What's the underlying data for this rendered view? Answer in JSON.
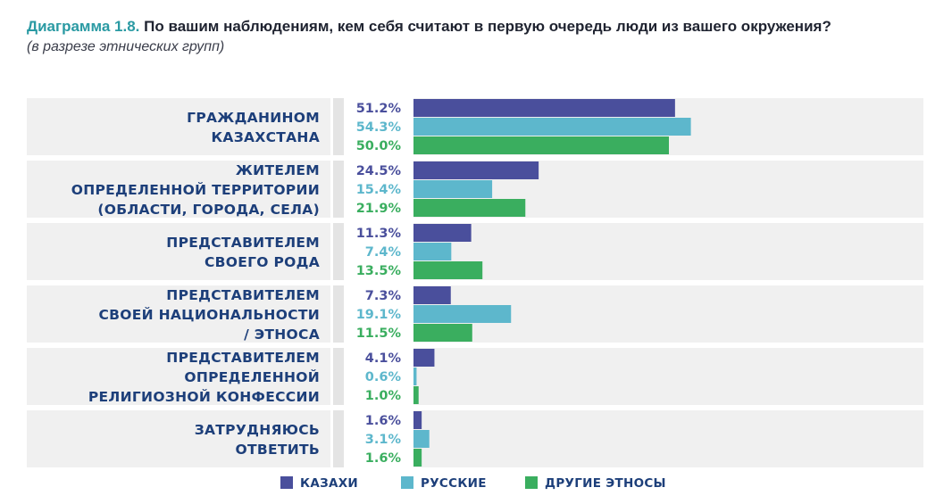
{
  "title_prefix": "Диаграмма 1.8.",
  "title_text": "По вашим наблюдениям, кем себя считают в первую очередь люди из вашего окружения?",
  "subtitle": "(в разрезе этнических групп)",
  "colors": {
    "kazakhs": "#4a4f9c",
    "russians": "#5db7cc",
    "others": "#3aae5f",
    "row_bg": "#f0f0f0",
    "label_text": "#1d3f7a"
  },
  "chart_data": {
    "type": "bar",
    "orientation": "horizontal",
    "categories": [
      [
        "ГРАЖДАНИНОМ",
        "КАЗАХСТАНА"
      ],
      [
        "ЖИТЕЛЕМ",
        "ОПРЕДЕЛЕННОЙ ТЕРРИТОРИИ",
        "(ОБЛАСТИ, ГОРОДА, СЕЛА)"
      ],
      [
        "ПРЕДСТАВИТЕЛЕМ",
        "СВОЕГО РОДА"
      ],
      [
        "ПРЕДСТАВИТЕЛЕМ",
        "СВОЕЙ НАЦИОНАЛЬНОСТИ",
        "/ ЭТНОСА"
      ],
      [
        "ПРЕДСТАВИТЕЛЕМ",
        "ОПРЕДЕЛЕННОЙ",
        "РЕЛИГИОЗНОЙ КОНФЕССИИ"
      ],
      [
        "ЗАТРУДНЯЮСЬ",
        "ОТВЕТИТЬ"
      ]
    ],
    "series": [
      {
        "name": "КАЗАХИ",
        "color": "#4a4f9c",
        "values": [
          51.2,
          24.5,
          11.3,
          7.3,
          4.1,
          1.6
        ]
      },
      {
        "name": "РУССКИЕ",
        "color": "#5db7cc",
        "values": [
          54.3,
          15.4,
          7.4,
          19.1,
          0.6,
          3.1
        ]
      },
      {
        "name": "ДРУГИЕ ЭТНОСЫ",
        "color": "#3aae5f",
        "values": [
          50.0,
          21.9,
          13.5,
          11.5,
          1.0,
          1.6
        ]
      }
    ],
    "value_suffix": "%",
    "xlim": [
      0,
      100
    ],
    "legend_position": "bottom-center",
    "grid": false
  }
}
